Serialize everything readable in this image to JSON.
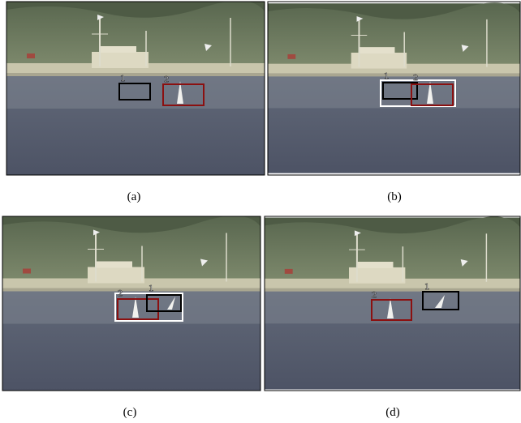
{
  "panels": [
    {
      "caption": "(a)",
      "boxes": [
        {
          "label": "1"
        },
        {
          "label": "2"
        }
      ]
    },
    {
      "caption": "(b)",
      "boxes": [
        {
          "label": "1"
        },
        {
          "label": "2"
        }
      ]
    },
    {
      "caption": "(c)",
      "boxes": [
        {
          "label": "2"
        },
        {
          "label": "1"
        }
      ]
    },
    {
      "caption": "(d)",
      "boxes": [
        {
          "label": "1"
        },
        {
          "label": "2"
        }
      ]
    }
  ]
}
